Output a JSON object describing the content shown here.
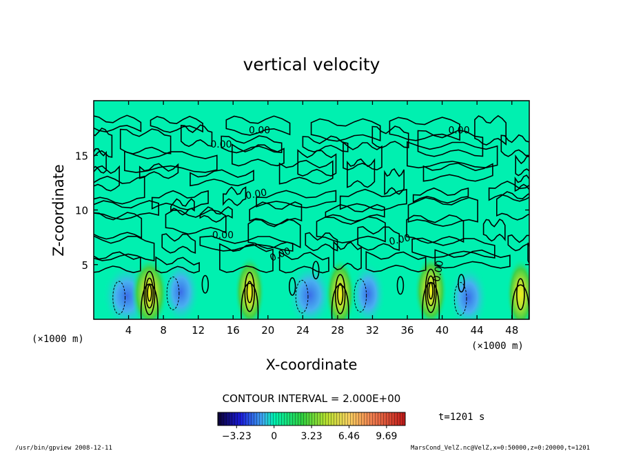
{
  "chart_data": {
    "type": "heatmap",
    "title": "vertical velocity",
    "xlabel": "X-coordinate",
    "ylabel": "Z-coordinate",
    "x_unit": "(×1000 m)",
    "y_unit": "(×1000 m)",
    "xlim": [
      0,
      50
    ],
    "ylim": [
      0,
      20
    ],
    "x_ticks": [
      4,
      8,
      12,
      16,
      20,
      24,
      28,
      32,
      36,
      40,
      44,
      48
    ],
    "y_ticks": [
      5,
      10,
      15
    ],
    "contour_labels": [
      "0.00",
      "0.00",
      "0.00",
      "0.00",
      "0.00",
      "0.00",
      "0.00",
      "0.00"
    ],
    "contour_interval_text": "CONTOUR INTERVAL = 2.000E+00",
    "colorbar": {
      "ticks": [
        -3.23,
        0,
        3.23,
        6.46,
        9.69
      ],
      "tick_labels": [
        "−3.23",
        "0",
        "3.23",
        "6.46",
        "9.69"
      ],
      "min": -4.85,
      "max": 11.3
    },
    "updrafts": [
      {
        "x": 6.4,
        "z": 2.4,
        "w": 9.7
      },
      {
        "x": 17.9,
        "z": 2.5,
        "w": 5.5
      },
      {
        "x": 28.3,
        "z": 2.3,
        "w": 5.0
      },
      {
        "x": 38.7,
        "z": 2.6,
        "w": 7.5
      },
      {
        "x": 49.0,
        "z": 2.3,
        "w": 4.0
      }
    ],
    "downdrafts": [
      {
        "x": 3.8,
        "z": 2.1,
        "w": -3.2
      },
      {
        "x": 10.0,
        "z": 2.5,
        "w": -2.5
      },
      {
        "x": 24.8,
        "z": 2.2,
        "w": -3.0
      },
      {
        "x": 31.5,
        "z": 2.3,
        "w": -2.3
      },
      {
        "x": 43.0,
        "z": 2.0,
        "w": -2.6
      }
    ],
    "background_color": "#00f0b0",
    "time_text": "t=1201 s"
  },
  "footer": {
    "left": "/usr/bin/gpview   2008-12-11",
    "right": "MarsCond_VelZ.nc@VelZ,x=0:50000,z=0:20000,t=1201"
  }
}
